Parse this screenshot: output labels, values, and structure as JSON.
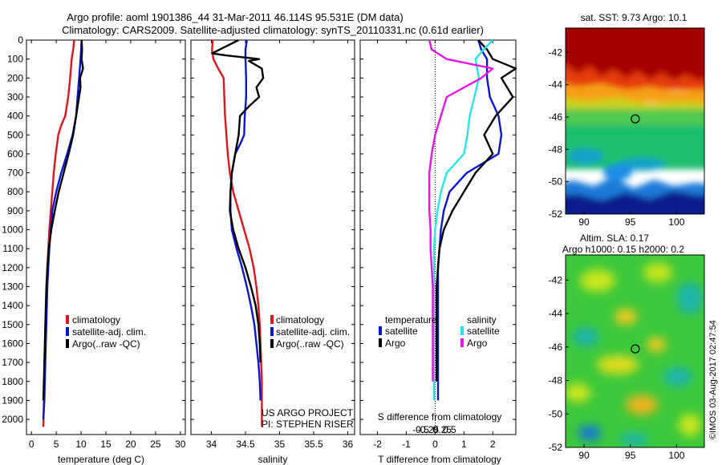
{
  "title": {
    "line1": "Argo profile: aoml 1901386_44 31-Mar-2011 46.114S 95.531E (DM data)",
    "line2": "Climatology: CARS2009. Satellite-adjusted climatology: synTS_20110331.nc (0.61d earlier)"
  },
  "colors": {
    "climatology": "#e0141e",
    "satellite": "#0a14d2",
    "argo": "#000000",
    "satellite_salinity": "#28e6e6",
    "argo_salinity": "#e614e6"
  },
  "chart_data": [
    {
      "type": "line",
      "panel": "temperature",
      "xlabel": "temperature (deg C)",
      "xlim": [
        -1,
        31
      ],
      "xticks": [
        0,
        5,
        10,
        15,
        20,
        25,
        30
      ],
      "ylim": [
        2080,
        0
      ],
      "yticks": [
        0,
        100,
        200,
        300,
        400,
        500,
        600,
        700,
        800,
        900,
        1000,
        1100,
        1200,
        1300,
        1400,
        1500,
        1600,
        1700,
        1800,
        1900,
        2000
      ],
      "legend": [
        "climatology",
        "satellite-adj. clim.",
        "Argo(..raw -QC)"
      ],
      "legend_placement": "center",
      "series": [
        {
          "name": "climatology",
          "color_key": "climatology",
          "x": [
            8.6,
            8.4,
            8.1,
            7.8,
            7.4,
            6.8,
            6.0,
            5.4,
            4.9,
            4.5,
            4.2,
            3.9,
            3.6,
            3.4,
            3.2,
            3.1,
            3.0,
            2.9,
            2.8,
            2.7,
            2.6,
            2.5,
            2.4
          ],
          "y": [
            0,
            50,
            100,
            200,
            300,
            400,
            450,
            500,
            600,
            700,
            800,
            900,
            1000,
            1100,
            1200,
            1300,
            1400,
            1500,
            1600,
            1700,
            1800,
            1900,
            2040
          ]
        },
        {
          "name": "satellite-adj. clim.",
          "color_key": "satellite",
          "x": [
            10.1,
            10.0,
            9.9,
            9.6,
            9.3,
            9.0,
            8.3,
            7.2,
            6.0,
            5.0,
            4.2,
            3.9,
            3.6,
            3.4,
            3.2,
            3.1,
            3.0,
            2.9,
            2.8,
            2.7,
            2.6,
            2.5,
            2.4
          ],
          "y": [
            0,
            50,
            100,
            200,
            300,
            400,
            500,
            600,
            700,
            800,
            900,
            1000,
            1100,
            1200,
            1300,
            1400,
            1500,
            1600,
            1700,
            1800,
            1900,
            1950,
            2000
          ]
        },
        {
          "name": "Argo(..raw -QC)",
          "color_key": "argo",
          "x": [
            10.1,
            10.2,
            10.1,
            10.4,
            9.8,
            9.9,
            9.0,
            8.4,
            7.5,
            6.5,
            5.5,
            4.7,
            4.0,
            3.5,
            3.2,
            3.0,
            2.9,
            2.8,
            2.7,
            2.6,
            2.5,
            2.4
          ],
          "y": [
            0,
            50,
            100,
            150,
            200,
            250,
            400,
            500,
            600,
            700,
            800,
            900,
            1000,
            1100,
            1200,
            1300,
            1400,
            1500,
            1600,
            1700,
            1800,
            1900
          ]
        }
      ]
    },
    {
      "type": "line",
      "panel": "salinity",
      "xlabel": "salinity",
      "xlim": [
        33.7,
        36.1
      ],
      "xticks": [
        34,
        34.5,
        35,
        35.5,
        36
      ],
      "ylim": [
        2080,
        0
      ],
      "legend": [
        "climatology",
        "satellite-adj. clim.",
        "Argo(..raw -QC)"
      ],
      "legend_placement": "bottom-right",
      "annotation_lines": [
        "US ARGO PROJECT",
        "PI: STEPHEN RISER"
      ],
      "series": [
        {
          "name": "climatology",
          "color_key": "climatology",
          "x": [
            34.02,
            34.01,
            34.03,
            34.1,
            34.18,
            34.19,
            34.2,
            34.22,
            34.24,
            34.27,
            34.32,
            34.4,
            34.48,
            34.56,
            34.62,
            34.66,
            34.69,
            34.71,
            34.72,
            34.73,
            34.74,
            34.74,
            34.74
          ],
          "y": [
            0,
            50,
            100,
            150,
            200,
            300,
            400,
            500,
            600,
            700,
            800,
            900,
            1000,
            1100,
            1200,
            1300,
            1400,
            1500,
            1600,
            1700,
            1800,
            1900,
            2040
          ]
        },
        {
          "name": "satellite-adj. clim.",
          "color_key": "satellite",
          "x": [
            34.52,
            34.5,
            34.5,
            34.51,
            34.51,
            34.49,
            34.48,
            34.42,
            34.35,
            34.3,
            34.28,
            34.28,
            34.3,
            34.37,
            34.45,
            34.52,
            34.58,
            34.63,
            34.66,
            34.69,
            34.71,
            34.72
          ],
          "y": [
            0,
            50,
            100,
            200,
            300,
            400,
            500,
            550,
            600,
            700,
            800,
            900,
            1000,
            1100,
            1200,
            1300,
            1400,
            1500,
            1600,
            1700,
            1800,
            1900
          ]
        },
        {
          "name": "Argo(..raw -QC)",
          "color_key": "argo",
          "x": [
            34.4,
            34.01,
            34.2,
            34.7,
            34.55,
            34.74,
            34.76,
            34.66,
            34.7,
            34.55,
            34.42,
            34.4,
            34.35,
            34.3,
            34.28,
            34.27,
            34.32,
            34.4,
            34.5,
            34.58,
            34.65,
            34.69,
            34.71,
            34.72
          ],
          "y": [
            0,
            70,
            80,
            100,
            110,
            150,
            200,
            250,
            300,
            350,
            400,
            500,
            600,
            700,
            800,
            900,
            1000,
            1100,
            1200,
            1300,
            1400,
            1500,
            1600,
            1700
          ]
        }
      ]
    },
    {
      "type": "line",
      "panel": "difference",
      "xlabel": "T difference from climatology",
      "xlabel_top": "S difference from climatology",
      "xlim": [
        -2.6,
        2.8
      ],
      "xticks": [
        -2,
        -1,
        0,
        1,
        2
      ],
      "xticks_top": [
        -0.5,
        -0.25,
        0,
        0.25,
        0.5
      ],
      "ylim": [
        2080,
        0
      ],
      "legend": {
        "temperature_title": "temperature",
        "salinity_title": "salinity",
        "entries": [
          "satellite",
          "Argo",
          "satellite",
          "Argo"
        ]
      },
      "legend_placement": "bottom",
      "series": [
        {
          "name": "satellite",
          "color_key": "satellite",
          "quantity": "temperature",
          "x": [
            1.5,
            1.6,
            1.8,
            1.8,
            1.9,
            2.2,
            2.3,
            2.2,
            1.1,
            0.5,
            0.3,
            0.2,
            0.15,
            0.1,
            0.1,
            0.1,
            0.1,
            0.1,
            0.1,
            0.1
          ],
          "y": [
            0,
            50,
            100,
            200,
            300,
            400,
            500,
            600,
            700,
            800,
            900,
            1000,
            1100,
            1200,
            1300,
            1400,
            1500,
            1600,
            1800,
            1900
          ]
        },
        {
          "name": "Argo",
          "color_key": "argo",
          "quantity": "temperature",
          "x": [
            1.5,
            1.8,
            2.0,
            2.8,
            2.3,
            2.7,
            2.1,
            1.7,
            2.0,
            1.4,
            1.0,
            0.6,
            0.3,
            0.15,
            0.1,
            0.05,
            0.05,
            0.05,
            0.05,
            0.05
          ],
          "y": [
            0,
            50,
            100,
            150,
            200,
            300,
            400,
            500,
            600,
            700,
            800,
            900,
            1000,
            1100,
            1200,
            1300,
            1400,
            1500,
            1600,
            1800
          ]
        },
        {
          "name": "satellite",
          "color_key": "satellite_salinity",
          "quantity": "salinity",
          "x": [
            0.5,
            0.42,
            0.35,
            0.38,
            0.34,
            0.3,
            0.28,
            0.25,
            0.1,
            0.05,
            0.02,
            0.0,
            -0.01,
            -0.01,
            -0.01,
            -0.01,
            -0.01,
            -0.01,
            -0.01,
            -0.01
          ],
          "y": [
            0,
            50,
            100,
            200,
            300,
            400,
            500,
            600,
            700,
            800,
            900,
            1000,
            1100,
            1200,
            1300,
            1400,
            1500,
            1600,
            1800,
            1900
          ]
        },
        {
          "name": "Argo",
          "color_key": "argo_salinity",
          "quantity": "salinity",
          "x": [
            -0.05,
            -0.03,
            0.1,
            0.5,
            0.4,
            0.1,
            0.05,
            0.0,
            -0.03,
            -0.05,
            -0.05,
            -0.05,
            -0.04,
            -0.04,
            -0.03,
            -0.02,
            -0.02,
            -0.02,
            -0.02,
            -0.02
          ],
          "y": [
            0,
            50,
            100,
            150,
            200,
            300,
            400,
            500,
            600,
            700,
            800,
            900,
            1000,
            1100,
            1200,
            1300,
            1400,
            1500,
            1600,
            1800
          ]
        }
      ]
    },
    {
      "type": "heatmap",
      "panel": "sst-map",
      "title": "sat. SST: 9.73  Argo: 10.1",
      "xlim": [
        88,
        103
      ],
      "ylim": [
        -52,
        -40.5
      ],
      "xticks": [
        90,
        95,
        100
      ],
      "yticks": [
        -42,
        -44,
        -46,
        -48,
        -50,
        -52
      ],
      "marker": {
        "lon": 95.531,
        "lat": -46.114
      }
    },
    {
      "type": "heatmap",
      "panel": "sla-map",
      "title": "Altim. SLA: 0.17",
      "subtitle": "Argo h1000: 0.15  h2000: 0.2",
      "xlim": [
        88,
        103
      ],
      "ylim": [
        -52,
        -40.5
      ],
      "xticks": [
        90,
        95,
        100
      ],
      "yticks": [
        -42,
        -44,
        -46,
        -48,
        -50,
        -52
      ],
      "marker": {
        "lon": 95.531,
        "lat": -46.114
      }
    }
  ],
  "credit": "©IMOS 03-Aug-2017 02:47:54"
}
